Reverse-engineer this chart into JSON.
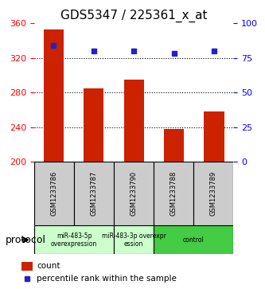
{
  "title": "GDS5347 / 225361_x_at",
  "samples": [
    "GSM1233786",
    "GSM1233787",
    "GSM1233790",
    "GSM1233788",
    "GSM1233789"
  ],
  "counts": [
    353,
    285,
    295,
    238,
    258
  ],
  "percentiles": [
    84,
    80,
    80,
    78,
    80
  ],
  "ylim_left": [
    200,
    360
  ],
  "ylim_right": [
    0,
    100
  ],
  "yticks_left": [
    200,
    240,
    280,
    320,
    360
  ],
  "yticks_right": [
    0,
    25,
    50,
    75,
    100
  ],
  "bar_color": "#cc2200",
  "dot_color": "#2222cc",
  "grid_color": "#000000",
  "protocol_groups": [
    {
      "label": "miR-483-5p\noverexpression",
      "start": 0,
      "end": 2,
      "color": "#ccffcc"
    },
    {
      "label": "miR-483-3p overexpr\nession",
      "start": 2,
      "end": 3,
      "color": "#ccffcc"
    },
    {
      "label": "control",
      "start": 3,
      "end": 5,
      "color": "#44cc44"
    }
  ],
  "protocol_label": "protocol",
  "legend_count": "count",
  "legend_percentile": "percentile rank within the sample",
  "sample_box_color": "#cccccc",
  "title_fontsize": 11
}
